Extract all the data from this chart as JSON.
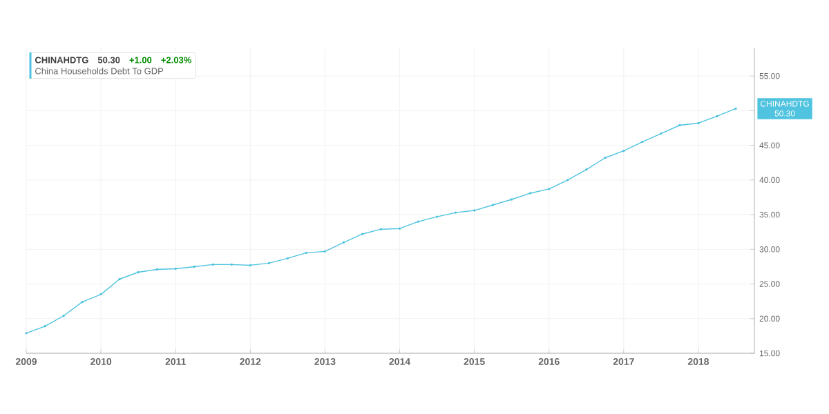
{
  "chart_data": {
    "type": "line",
    "x": [
      "2009-01",
      "2009-04",
      "2009-07",
      "2009-10",
      "2010-01",
      "2010-04",
      "2010-07",
      "2010-10",
      "2011-01",
      "2011-04",
      "2011-07",
      "2011-10",
      "2012-01",
      "2012-04",
      "2012-07",
      "2012-10",
      "2013-01",
      "2013-04",
      "2013-07",
      "2013-10",
      "2014-01",
      "2014-04",
      "2014-07",
      "2014-10",
      "2015-01",
      "2015-04",
      "2015-07",
      "2015-10",
      "2016-01",
      "2016-04",
      "2016-07",
      "2016-10",
      "2017-01",
      "2017-04",
      "2017-07",
      "2017-10",
      "2018-01",
      "2018-04",
      "2018-07"
    ],
    "series": [
      {
        "name": "China Households Debt To GDP",
        "color": "#4fc3df",
        "values": [
          17.9,
          18.9,
          20.4,
          22.4,
          23.5,
          25.7,
          26.7,
          27.1,
          27.2,
          27.5,
          27.8,
          27.8,
          27.7,
          28.0,
          28.7,
          29.5,
          29.7,
          31.0,
          32.2,
          32.9,
          33.0,
          34.0,
          34.7,
          35.3,
          35.6,
          36.4,
          37.2,
          38.1,
          38.7,
          40.0,
          41.5,
          43.2,
          44.2,
          45.5,
          46.7,
          47.9,
          48.2,
          49.2,
          50.3
        ]
      }
    ],
    "xlim": [
      "2009-01",
      "2018-10"
    ],
    "ylim": [
      15,
      59
    ],
    "xticks": [
      "2009",
      "2010",
      "2011",
      "2012",
      "2013",
      "2014",
      "2015",
      "2016",
      "2017",
      "2018"
    ],
    "yticks": [
      {
        "value": 15,
        "label": "15.00"
      },
      {
        "value": 20,
        "label": "20.00"
      },
      {
        "value": 25,
        "label": "25.00"
      },
      {
        "value": 30,
        "label": "30.00"
      },
      {
        "value": 35,
        "label": "35.00"
      },
      {
        "value": 40,
        "label": "40.00"
      },
      {
        "value": 45,
        "label": "45.00"
      },
      {
        "value": 50,
        "label": null
      },
      {
        "value": 55,
        "label": "55.00"
      }
    ],
    "annotations": [
      "CHINAHDTG",
      "50.30",
      "+1.00",
      "+2.03%",
      {
        "text": "CHINAHDTG",
        "y": 50.3
      },
      "50.30"
    ],
    "grid": true,
    "legend": "top left",
    "marker": "circle",
    "line_style": "solid"
  }
}
